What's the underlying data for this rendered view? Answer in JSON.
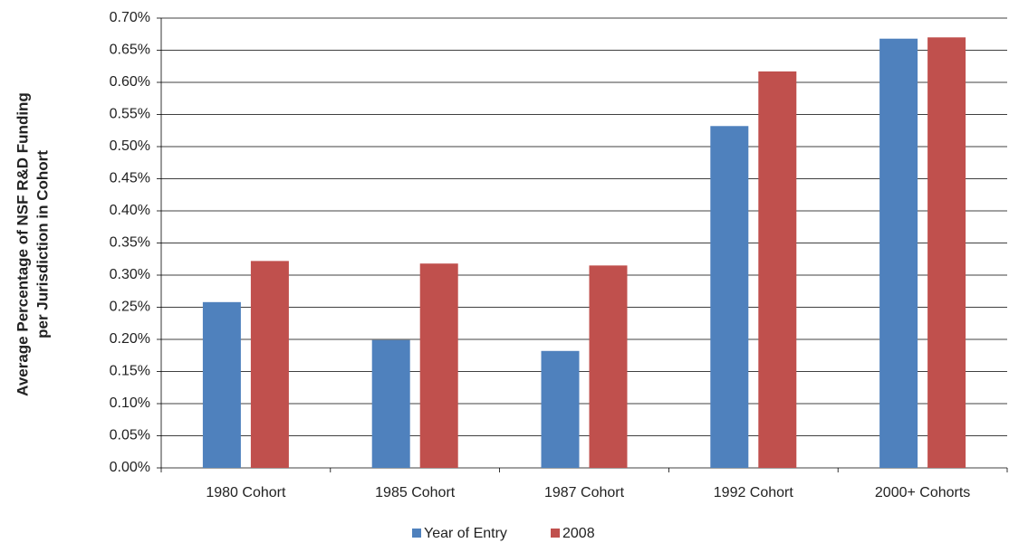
{
  "chart_data": {
    "type": "bar",
    "y_label": [
      "Average Percentage of NSF R&D Funding",
      "per Jurisdiction in Cohort"
    ],
    "categories": [
      "1980 Cohort",
      "1985 Cohort",
      "1987 Cohort",
      "1992 Cohort",
      "2000+ Cohorts"
    ],
    "series": [
      {
        "name": "Year of Entry",
        "color": "#4f81bd",
        "values": [
          0.258,
          0.199,
          0.182,
          0.532,
          0.668
        ]
      },
      {
        "name": "2008",
        "color": "#c0504d",
        "values": [
          0.322,
          0.318,
          0.315,
          0.617,
          0.67
        ]
      }
    ],
    "ylim": [
      0,
      0.7
    ],
    "yticks": [
      {
        "value": 0,
        "label": "0.00%"
      },
      {
        "value": 0.05,
        "label": "0.05%"
      },
      {
        "value": 0.1,
        "label": "0.10%"
      },
      {
        "value": 0.15,
        "label": "0.15%"
      },
      {
        "value": 0.2,
        "label": "0.20%"
      },
      {
        "value": 0.25,
        "label": "0.25%"
      },
      {
        "value": 0.3,
        "label": "0.30%"
      },
      {
        "value": 0.35,
        "label": "0.35%"
      },
      {
        "value": 0.4,
        "label": "0.40%"
      },
      {
        "value": 0.45,
        "label": "0.45%"
      },
      {
        "value": 0.5,
        "label": "0.50%"
      },
      {
        "value": 0.55,
        "label": "0.55%"
      },
      {
        "value": 0.6,
        "label": "0.60%"
      },
      {
        "value": 0.65,
        "label": "0.65%"
      },
      {
        "value": 0.7,
        "label": "0.70%"
      }
    ],
    "grid": true,
    "legend": "bottom"
  }
}
